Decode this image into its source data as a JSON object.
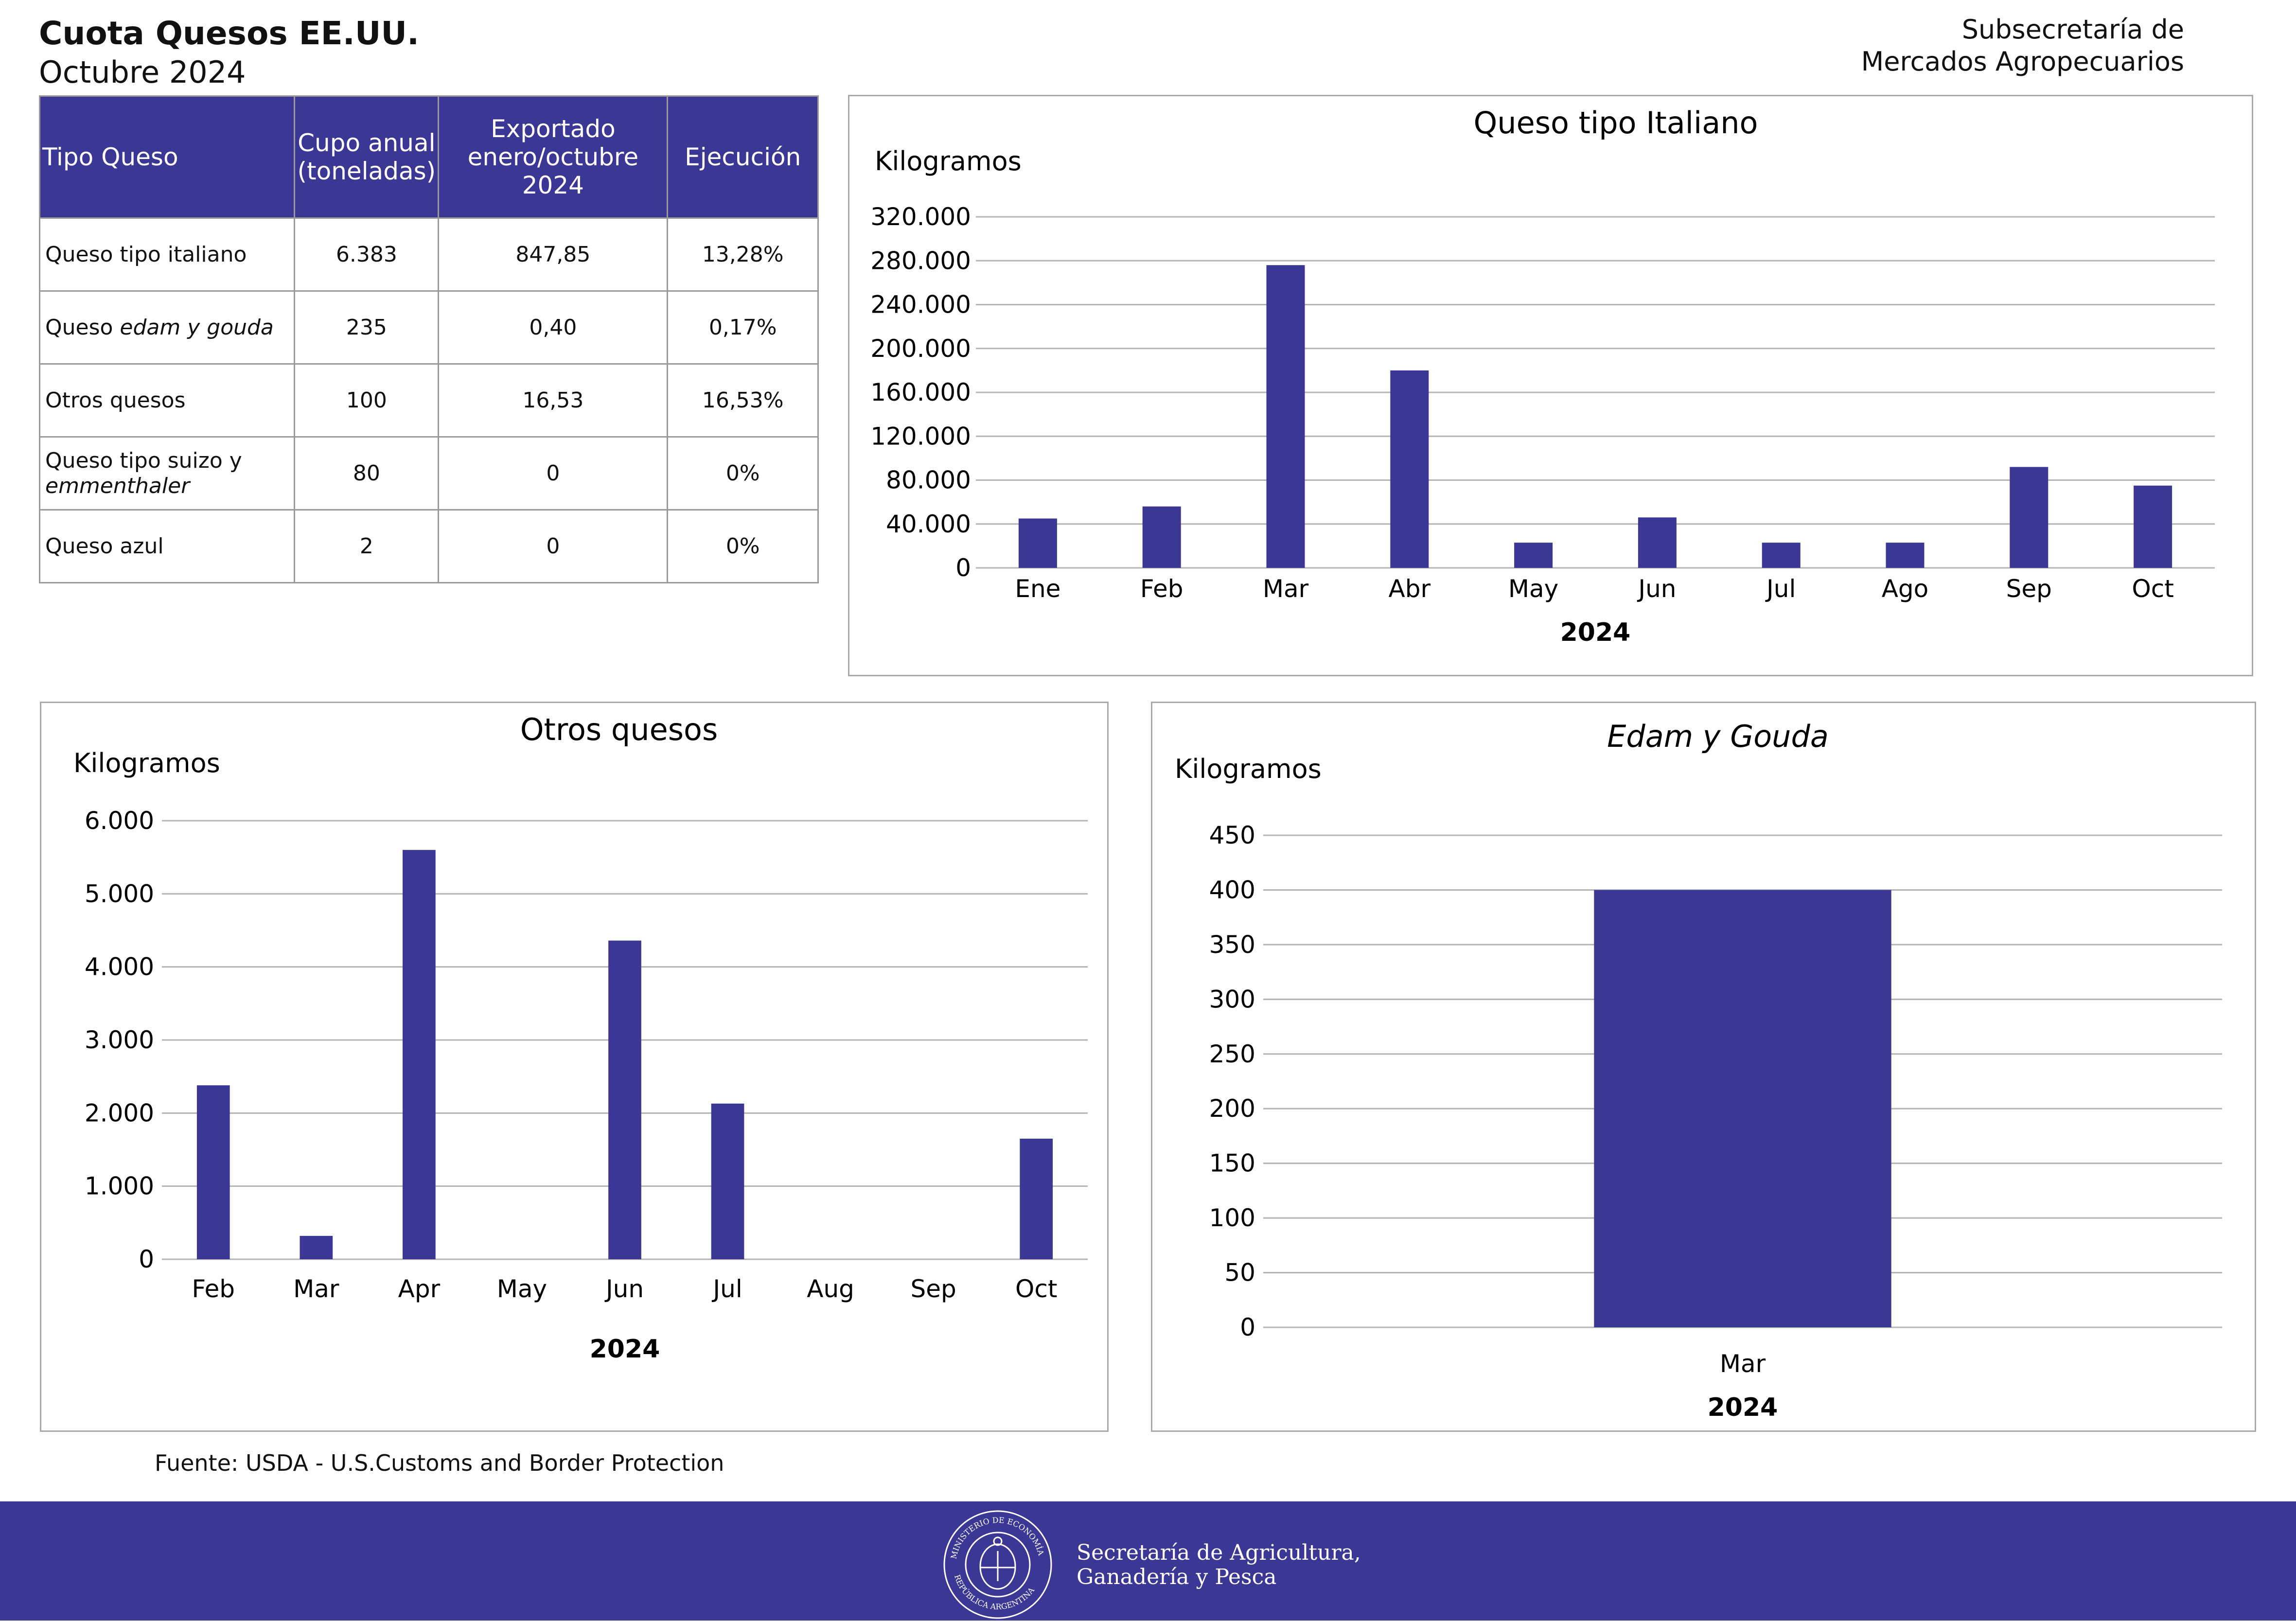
{
  "header": {
    "title": "Cuota Quesos EE.UU.",
    "subtitle": "Octubre 2024",
    "org_line1": "Subsecretaría de",
    "org_line2": "Mercados Agropecuarios"
  },
  "table": {
    "columns": [
      "Tipo Queso",
      "Cupo anual (toneladas)",
      "Exportado enero/octubre 2024",
      "Ejecución"
    ],
    "rows": [
      {
        "name_pre": "Queso tipo italiano",
        "name_em": "",
        "name_post": "",
        "cupo": "6.383",
        "exportado": "847,85",
        "ejecucion": "13,28%"
      },
      {
        "name_pre": "Queso ",
        "name_em": "edam y gouda",
        "name_post": "",
        "cupo": "235",
        "exportado": "0,40",
        "ejecucion": "0,17%"
      },
      {
        "name_pre": "Otros quesos",
        "name_em": "",
        "name_post": "",
        "cupo": "100",
        "exportado": "16,53",
        "ejecucion": "16,53%"
      },
      {
        "name_pre": "Queso tipo suizo y",
        "name_em": "emmenthaler",
        "name_post": "",
        "cupo": "80",
        "exportado": "0",
        "ejecucion": "0%"
      },
      {
        "name_pre": "Queso azul",
        "name_em": "",
        "name_post": "",
        "cupo": "2",
        "exportado": "0",
        "ejecucion": "0%"
      }
    ]
  },
  "chart_data": [
    {
      "id": "italiano",
      "type": "bar",
      "title": "Queso tipo Italiano",
      "title_italic": false,
      "ylabel": "Kilogramos",
      "xlabel": "2024",
      "categories": [
        "Ene",
        "Feb",
        "Mar",
        "Abr",
        "May",
        "Jun",
        "Jul",
        "Ago",
        "Sep",
        "Oct"
      ],
      "values": [
        45000,
        56000,
        276000,
        180000,
        23000,
        46000,
        23000,
        23000,
        92000,
        75000
      ],
      "ylim": [
        0,
        320000
      ],
      "yticks": [
        0,
        40000,
        80000,
        120000,
        160000,
        200000,
        240000,
        280000,
        320000
      ],
      "ytick_labels": [
        "0",
        "40.000",
        "80.000",
        "120.000",
        "160.000",
        "200.000",
        "240.000",
        "280.000",
        "320.000"
      ],
      "grid": true,
      "legend": "none",
      "color": "#3a3795"
    },
    {
      "id": "otros",
      "type": "bar",
      "title": "Otros quesos",
      "title_italic": false,
      "ylabel": "Kilogramos",
      "xlabel": "2024",
      "categories": [
        "Feb",
        "Mar",
        "Apr",
        "May",
        "Jun",
        "Jul",
        "Aug",
        "Sep",
        "Oct"
      ],
      "values": [
        2380,
        320,
        5600,
        0,
        4360,
        2130,
        0,
        0,
        1650
      ],
      "ylim": [
        0,
        6000
      ],
      "yticks": [
        0,
        1000,
        2000,
        3000,
        4000,
        5000,
        6000
      ],
      "ytick_labels": [
        "0",
        "1.000",
        "2.000",
        "3.000",
        "4.000",
        "5.000",
        "6.000"
      ],
      "grid": true,
      "legend": "none",
      "color": "#3a3795"
    },
    {
      "id": "edam",
      "type": "bar",
      "title": "Edam y Gouda",
      "title_italic": true,
      "ylabel": "Kilogramos",
      "xlabel": "2024",
      "categories": [
        "Mar"
      ],
      "values": [
        400
      ],
      "ylim": [
        0,
        450
      ],
      "yticks": [
        0,
        50,
        100,
        150,
        200,
        250,
        300,
        350,
        400,
        450
      ],
      "ytick_labels": [
        "0",
        "50",
        "100",
        "150",
        "200",
        "250",
        "300",
        "350",
        "400",
        "450"
      ],
      "grid": true,
      "legend": "none",
      "color": "#3a3795"
    }
  ],
  "source": "Fuente: USDA - U.S.Customs and Border Protection",
  "footer": {
    "line1": "Secretaría de Agricultura,",
    "line2": "Ganadería y Pesca",
    "seal_text": "MINISTERIO DE ECONOMÍA · REPÚBLICA ARGENTINA",
    "background": "#3a3795"
  }
}
